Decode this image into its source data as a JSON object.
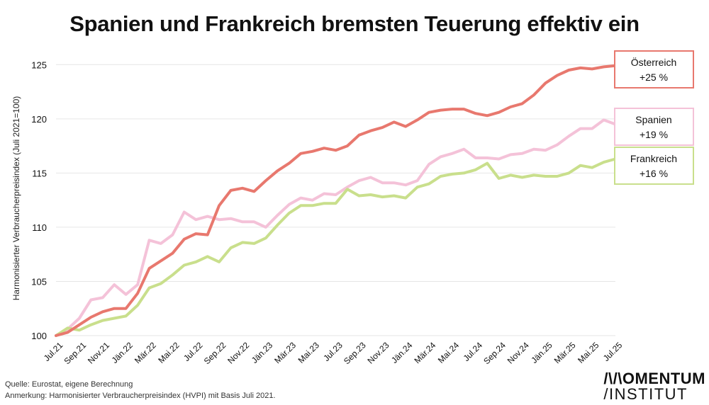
{
  "title": "Spanien und Frankreich bremsten Teuerung effektiv ein",
  "footer": {
    "source": "Quelle: Eurostat, eigene Berechnung",
    "note": "Anmerkung: Harmonisierter Verbraucherpreisindex (HVPI) mit Basis Juli 2021."
  },
  "logo": {
    "line1": "/\\/\\OMENTUM",
    "line2": "/INSTITUT"
  },
  "chart_data": {
    "type": "line",
    "title": "Spanien und Frankreich bremsten Teuerung effektiv ein",
    "ylabel": "Harmonisierter Verbraucherpreisindex (Juli 2021=100)",
    "xlabel": "",
    "ylim": [
      100,
      126
    ],
    "yticks": [
      100,
      105,
      110,
      115,
      120,
      125
    ],
    "grid": "horizontal",
    "x": [
      "Jul.21",
      "Aug.21",
      "Sep.21",
      "Okt.21",
      "Nov.21",
      "Dez.21",
      "Jän.22",
      "Feb.22",
      "Mär.22",
      "Apr.22",
      "Mai.22",
      "Jun.22",
      "Jul.22",
      "Aug.22",
      "Sep.22",
      "Okt.22",
      "Nov.22",
      "Dez.22",
      "Jän.23",
      "Feb.23",
      "Mär.23",
      "Apr.23",
      "Mai.23",
      "Jun.23",
      "Jul.23",
      "Aug.23",
      "Sep.23",
      "Okt.23",
      "Nov.23",
      "Dez.23",
      "Jän.24",
      "Feb.24",
      "Mär.24",
      "Apr.24",
      "Mai.24",
      "Jun.24",
      "Jul.24",
      "Aug.24",
      "Sep.24",
      "Okt.24",
      "Nov.24",
      "Dez.24",
      "Jän.25",
      "Feb.25",
      "Mär.25",
      "Apr.25",
      "Mai.25",
      "Jun.25",
      "Jul.25"
    ],
    "xtick_labels": [
      "Jul.21",
      "Sep.21",
      "Nov.21",
      "Jän.22",
      "Mär.22",
      "Mai.22",
      "Jul.22",
      "Sep.22",
      "Nov.22",
      "Jän.23",
      "Mär.23",
      "Mai.23",
      "Jul.23",
      "Sep.23",
      "Nov.23",
      "Jän.24",
      "Mär.24",
      "Mai.24",
      "Jul.24",
      "Sep.24",
      "Nov.24",
      "Jän.25",
      "Mär.25",
      "Mai.25",
      "Jul.25"
    ],
    "series": [
      {
        "name": "Österreich",
        "label": "+25 %",
        "color": "#e8786e",
        "values": [
          100,
          100.3,
          101.0,
          101.7,
          102.2,
          102.5,
          102.5,
          103.9,
          106.2,
          106.9,
          107.6,
          108.9,
          109.4,
          109.3,
          112.0,
          113.4,
          113.6,
          113.3,
          114.3,
          115.2,
          115.9,
          116.8,
          117.0,
          117.3,
          117.1,
          117.5,
          118.5,
          118.9,
          119.2,
          119.7,
          119.3,
          119.9,
          120.6,
          120.8,
          120.9,
          120.9,
          120.5,
          120.3,
          120.6,
          121.1,
          121.4,
          122.2,
          123.3,
          124.0,
          124.5,
          124.7,
          124.6,
          124.8,
          124.9
        ]
      },
      {
        "name": "Spanien",
        "label": "+19 %",
        "color": "#f4c2d8",
        "values": [
          100,
          100.6,
          101.6,
          103.3,
          103.5,
          104.7,
          103.8,
          104.7,
          108.8,
          108.5,
          109.3,
          111.4,
          110.7,
          111.0,
          110.7,
          110.8,
          110.5,
          110.5,
          110.0,
          111.1,
          112.1,
          112.7,
          112.5,
          113.1,
          113.0,
          113.7,
          114.3,
          114.6,
          114.1,
          114.1,
          113.9,
          114.3,
          115.8,
          116.5,
          116.8,
          117.2,
          116.4,
          116.4,
          116.3,
          116.7,
          116.8,
          117.2,
          117.1,
          117.6,
          118.4,
          119.1,
          119.1,
          119.9,
          119.5
        ]
      },
      {
        "name": "Frankreich",
        "label": "+16 %",
        "color": "#c9df8c",
        "values": [
          100,
          100.7,
          100.5,
          101.0,
          101.4,
          101.6,
          101.8,
          102.8,
          104.4,
          104.8,
          105.6,
          106.5,
          106.8,
          107.3,
          106.8,
          108.1,
          108.6,
          108.5,
          109.0,
          110.2,
          111.3,
          112.0,
          112.0,
          112.2,
          112.2,
          113.5,
          112.9,
          113.0,
          112.8,
          112.9,
          112.7,
          113.7,
          114.0,
          114.7,
          114.9,
          115.0,
          115.3,
          115.9,
          114.5,
          114.8,
          114.6,
          114.8,
          114.7,
          114.7,
          115.0,
          115.7,
          115.5,
          116.0,
          116.3
        ]
      }
    ]
  }
}
